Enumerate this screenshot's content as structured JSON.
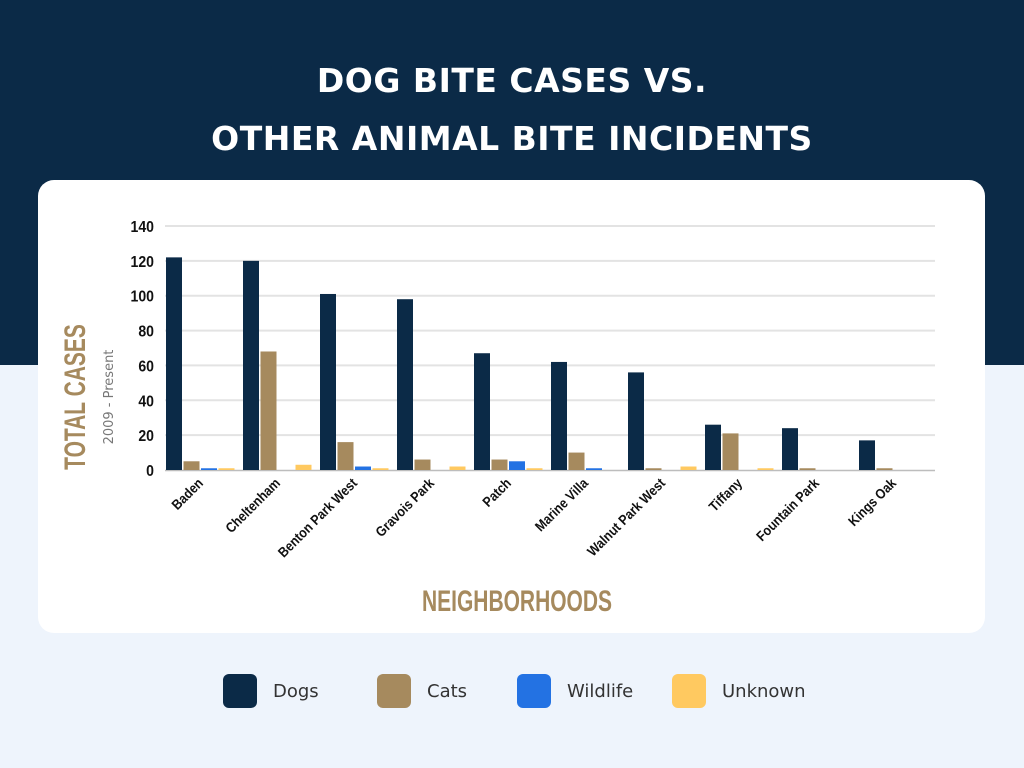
{
  "title_lines": [
    "DOG BITE CASES VS.",
    "OTHER ANIMAL BITE INCIDENTS"
  ],
  "chart_data": {
    "type": "bar",
    "title": "DOG BITE CASES VS. OTHER ANIMAL BITE INCIDENTS",
    "xlabel": "NEIGHBORHOODS",
    "ylabel": "TOTAL CASES",
    "ylabel_sub": "2009 - Present",
    "ylim": [
      0,
      140
    ],
    "yticks": [
      0,
      20,
      40,
      60,
      80,
      100,
      120,
      140
    ],
    "grid": true,
    "legend": "bottom",
    "categories": [
      "Baden",
      "Cheltenham",
      "Benton Park West",
      "Gravois Park",
      "Patch",
      "Marine Villa",
      "Walnut Park West",
      "Tiffany",
      "Fountain Park",
      "Kings Oak"
    ],
    "series": [
      {
        "name": "Dogs",
        "color": "#0b2a47",
        "values": [
          122,
          120,
          101,
          98,
          67,
          62,
          56,
          26,
          24,
          17
        ]
      },
      {
        "name": "Cats",
        "color": "#a68a5e",
        "values": [
          5,
          68,
          16,
          6,
          6,
          10,
          1,
          21,
          1,
          1
        ]
      },
      {
        "name": "Wildlife",
        "color": "#2372e3",
        "values": [
          1,
          0,
          2,
          0,
          5,
          1,
          0,
          0,
          0,
          0
        ]
      },
      {
        "name": "Unknown",
        "color": "#ffc960",
        "values": [
          1,
          3,
          1,
          2,
          1,
          0,
          2,
          1,
          0,
          0
        ]
      }
    ]
  }
}
